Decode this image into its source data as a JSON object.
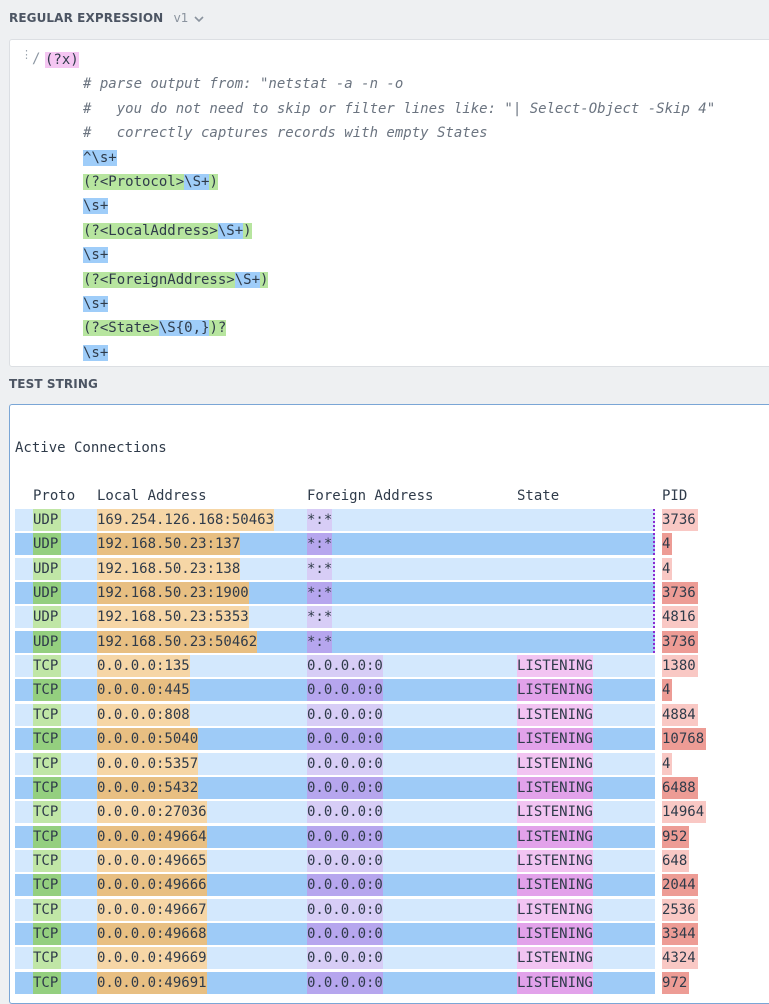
{
  "regex": {
    "label": "REGULAR EXPRESSION",
    "version": "v1",
    "delimiter": "/",
    "flag": "(?x)",
    "comments": [
      "# parse output from: \"netstat -a -n -o",
      "#   you do not need to skip or filter lines like: \"| Select-Object -Skip 4\"",
      "#   correctly captures records with empty States"
    ],
    "lines": [
      {
        "type": "blue",
        "text": "^\\s+"
      },
      {
        "type": "group",
        "open": "(?<Protocol>",
        "inner": "\\S+",
        "close": ")"
      },
      {
        "type": "blue",
        "text": "\\s+"
      },
      {
        "type": "group",
        "open": "(?<LocalAddress>",
        "inner": "\\S+",
        "close": ")"
      },
      {
        "type": "blue",
        "text": "\\s+"
      },
      {
        "type": "group",
        "open": "(?<ForeignAddress>",
        "inner": "\\S+",
        "close": ")"
      },
      {
        "type": "blue",
        "text": "\\s+"
      },
      {
        "type": "group",
        "open": "(?<State>",
        "inner": "\\S{0,}",
        "close": ")?"
      },
      {
        "type": "blue",
        "text": "\\s+"
      }
    ]
  },
  "test_string": {
    "label": "TEST STRING",
    "title": "Active Connections",
    "headers": [
      "Proto",
      "Local Address",
      "Foreign Address",
      "State",
      "PID"
    ],
    "rows": [
      {
        "proto": "UDP",
        "local": "169.254.126.168:50463",
        "foreign": "*:*",
        "state": "",
        "pid": "3736"
      },
      {
        "proto": "UDP",
        "local": "192.168.50.23:137",
        "foreign": "*:*",
        "state": "",
        "pid": "4"
      },
      {
        "proto": "UDP",
        "local": "192.168.50.23:138",
        "foreign": "*:*",
        "state": "",
        "pid": "4"
      },
      {
        "proto": "UDP",
        "local": "192.168.50.23:1900",
        "foreign": "*:*",
        "state": "",
        "pid": "3736"
      },
      {
        "proto": "UDP",
        "local": "192.168.50.23:5353",
        "foreign": "*:*",
        "state": "",
        "pid": "4816"
      },
      {
        "proto": "UDP",
        "local": "192.168.50.23:50462",
        "foreign": "*:*",
        "state": "",
        "pid": "3736"
      },
      {
        "proto": "TCP",
        "local": "0.0.0.0:135",
        "foreign": "0.0.0.0:0",
        "state": "LISTENING",
        "pid": "1380"
      },
      {
        "proto": "TCP",
        "local": "0.0.0.0:445",
        "foreign": "0.0.0.0:0",
        "state": "LISTENING",
        "pid": "4"
      },
      {
        "proto": "TCP",
        "local": "0.0.0.0:808",
        "foreign": "0.0.0.0:0",
        "state": "LISTENING",
        "pid": "4884"
      },
      {
        "proto": "TCP",
        "local": "0.0.0.0:5040",
        "foreign": "0.0.0.0:0",
        "state": "LISTENING",
        "pid": "10768"
      },
      {
        "proto": "TCP",
        "local": "0.0.0.0:5357",
        "foreign": "0.0.0.0:0",
        "state": "LISTENING",
        "pid": "4"
      },
      {
        "proto": "TCP",
        "local": "0.0.0.0:5432",
        "foreign": "0.0.0.0:0",
        "state": "LISTENING",
        "pid": "6488"
      },
      {
        "proto": "TCP",
        "local": "0.0.0.0:27036",
        "foreign": "0.0.0.0:0",
        "state": "LISTENING",
        "pid": "14964"
      },
      {
        "proto": "TCP",
        "local": "0.0.0.0:49664",
        "foreign": "0.0.0.0:0",
        "state": "LISTENING",
        "pid": "952"
      },
      {
        "proto": "TCP",
        "local": "0.0.0.0:49665",
        "foreign": "0.0.0.0:0",
        "state": "LISTENING",
        "pid": "648"
      },
      {
        "proto": "TCP",
        "local": "0.0.0.0:49666",
        "foreign": "0.0.0.0:0",
        "state": "LISTENING",
        "pid": "2044"
      },
      {
        "proto": "TCP",
        "local": "0.0.0.0:49667",
        "foreign": "0.0.0.0:0",
        "state": "LISTENING",
        "pid": "2536"
      },
      {
        "proto": "TCP",
        "local": "0.0.0.0:49668",
        "foreign": "0.0.0.0:0",
        "state": "LISTENING",
        "pid": "3344"
      },
      {
        "proto": "TCP",
        "local": "0.0.0.0:49669",
        "foreign": "0.0.0.0:0",
        "state": "LISTENING",
        "pid": "4324"
      },
      {
        "proto": "TCP",
        "local": "0.0.0.0:49691",
        "foreign": "0.0.0.0:0",
        "state": "LISTENING",
        "pid": "972"
      }
    ]
  },
  "colors": {
    "row_light": "#d3e8fd",
    "row_dark": "#9ecbf7",
    "proto_light": "#c0e6a6",
    "proto_dark": "#94cf7f",
    "local_light": "#f6d6a6",
    "local_dark": "#e8bf82",
    "foreign_light": "#d7cdf6",
    "foreign_dark": "#b6a6ee",
    "state_light": "#f2c4f2",
    "state_dark": "#e2a2ea",
    "pid_light": "#f9c8c4",
    "pid_dark": "#ed9c95"
  },
  "icons": {
    "version_dropdown": "chevron-down-icon",
    "drag_handle": "grip-icon"
  }
}
